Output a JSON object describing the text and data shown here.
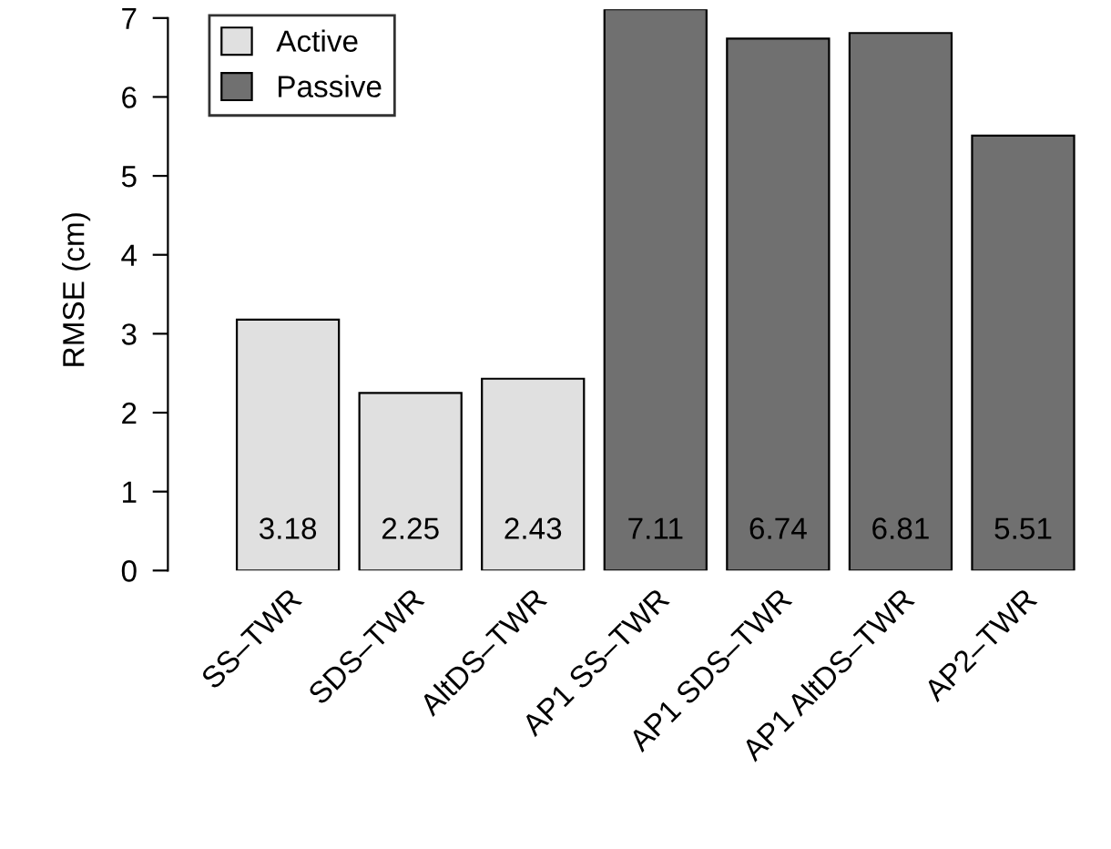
{
  "chart_data": {
    "type": "bar",
    "ylabel": "RMSE (cm)",
    "categories": [
      "SS–TWR",
      "SDS–TWR",
      "AltDS–TWR",
      "AP1 SS–TWR",
      "AP1 SDS–TWR",
      "AP1 AltDS–TWR",
      "AP2–TWR"
    ],
    "series": [
      {
        "name": "Active",
        "color": "#e0e0e0",
        "values": [
          3.18,
          2.25,
          2.43,
          null,
          null,
          null,
          null
        ]
      },
      {
        "name": "Passive",
        "color": "#707070",
        "values": [
          null,
          null,
          null,
          7.11,
          6.74,
          6.81,
          5.51
        ]
      }
    ],
    "ylim": [
      0,
      7.11
    ],
    "yticks": [
      0,
      1,
      2,
      3,
      4,
      5,
      6,
      7
    ],
    "grid": false,
    "legend": "top left",
    "data_labels": true
  }
}
